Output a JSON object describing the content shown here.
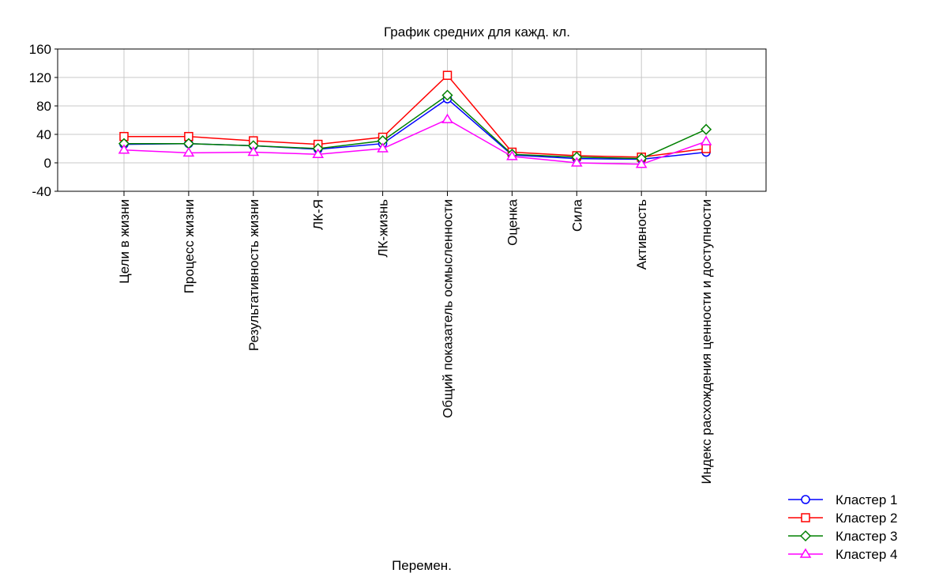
{
  "chart_data": {
    "type": "line",
    "title": "График средних для кажд. кл.",
    "xlabel": "Перемен.",
    "ylabel": "",
    "ylim": [
      -40,
      160
    ],
    "yticks": [
      -40,
      0,
      40,
      80,
      120,
      160
    ],
    "ytick_labels": [
      "-40",
      "0",
      "40",
      "80",
      "120",
      "160"
    ],
    "grid": true,
    "legend_position": "bottom-right",
    "categories": [
      "Цели в жизни",
      "Процесс жизни",
      "Результативность жизни",
      "ЛК-Я",
      "ЛК-жизнь",
      "Общий показатель осмысленности",
      "Оценка",
      "Сила",
      "Активность",
      "Индекс расхождения ценности и доступности"
    ],
    "series": [
      {
        "name": "Кластер  1",
        "color": "#0000ff",
        "marker": "circle",
        "values": [
          26,
          27,
          24,
          19,
          27,
          90,
          11,
          6,
          5,
          15
        ]
      },
      {
        "name": "Кластер  2",
        "color": "#ff0000",
        "marker": "square",
        "values": [
          37,
          37,
          31,
          26,
          36,
          123,
          15,
          10,
          8,
          20
        ]
      },
      {
        "name": "Кластер  3",
        "color": "#008000",
        "marker": "diamond",
        "values": [
          27,
          27,
          24,
          20,
          31,
          95,
          12,
          8,
          6,
          47
        ]
      },
      {
        "name": "Кластер  4",
        "color": "#ff00ff",
        "marker": "triangle",
        "values": [
          18,
          14,
          15,
          12,
          20,
          61,
          9,
          0,
          -2,
          30
        ]
      }
    ]
  }
}
